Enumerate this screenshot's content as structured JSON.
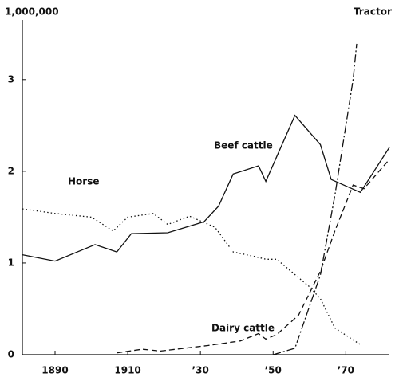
{
  "chart_data": {
    "type": "line",
    "y_label": "1,000,000",
    "xlim": [
      1881,
      1982
    ],
    "ylim": [
      0,
      3.65
    ],
    "xticks": [
      1890,
      1910,
      {
        "value": 1930,
        "label": "’30"
      },
      {
        "value": 1950,
        "label": "’50"
      },
      {
        "value": 1970,
        "label": "’70"
      }
    ],
    "yticks": [
      0,
      1,
      2,
      3
    ],
    "series": [
      {
        "name": "Beef cattle",
        "color": "#111111",
        "dash": "solid",
        "x": [
          1881,
          1890,
          1901,
          1907,
          1911,
          1921,
          1931,
          1935,
          1939,
          1946,
          1948,
          1956,
          1963,
          1966,
          1974,
          1982
        ],
        "values": [
          1.09,
          1.02,
          1.2,
          1.12,
          1.32,
          1.33,
          1.45,
          1.62,
          1.97,
          2.06,
          1.89,
          2.61,
          2.29,
          1.91,
          1.77,
          2.26
        ]
      },
      {
        "name": "Horse",
        "color": "#111111",
        "dash": "dotted",
        "x": [
          1881,
          1890,
          1900,
          1906,
          1910,
          1917,
          1921,
          1927,
          1934,
          1939,
          1945,
          1948,
          1951,
          1960,
          1963,
          1967,
          1974
        ],
        "values": [
          1.59,
          1.54,
          1.5,
          1.35,
          1.5,
          1.54,
          1.42,
          1.51,
          1.39,
          1.12,
          1.07,
          1.04,
          1.04,
          0.74,
          0.61,
          0.29,
          0.11
        ]
      },
      {
        "name": "Dairy cattle",
        "color": "#111111",
        "dash": "dashed",
        "x": [
          1907,
          1914,
          1919,
          1932,
          1941,
          1946,
          1948,
          1951,
          1957,
          1963,
          1967,
          1972,
          1975,
          1982
        ],
        "values": [
          0.02,
          0.06,
          0.04,
          0.1,
          0.15,
          0.23,
          0.17,
          0.22,
          0.43,
          0.91,
          1.35,
          1.85,
          1.81,
          2.13
        ]
      },
      {
        "name": "Tractor",
        "color": "#111111",
        "dash": "dashdot",
        "x": [
          1950,
          1956,
          1963,
          1967,
          1972,
          1973
        ],
        "values": [
          0,
          0.07,
          0.87,
          1.74,
          3.0,
          3.39
        ]
      }
    ]
  }
}
